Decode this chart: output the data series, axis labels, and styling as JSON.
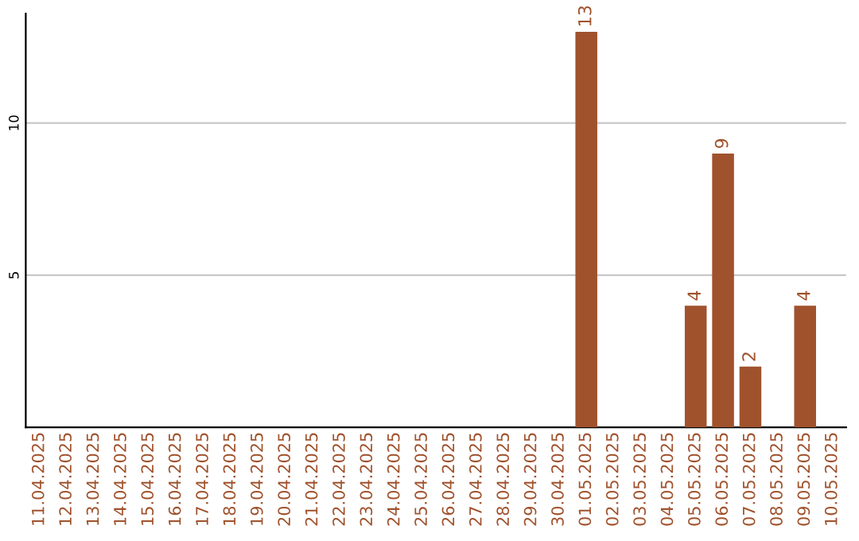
{
  "chart_data": {
    "type": "bar",
    "categories": [
      "11.04.2025",
      "12.04.2025",
      "13.04.2025",
      "14.04.2025",
      "15.04.2025",
      "16.04.2025",
      "17.04.2025",
      "18.04.2025",
      "19.04.2025",
      "20.04.2025",
      "21.04.2025",
      "22.04.2025",
      "23.04.2025",
      "24.04.2025",
      "25.04.2025",
      "26.04.2025",
      "27.04.2025",
      "28.04.2025",
      "29.04.2025",
      "30.04.2025",
      "01.05.2025",
      "02.05.2025",
      "03.05.2025",
      "04.05.2025",
      "05.05.2025",
      "06.05.2025",
      "07.05.2025",
      "08.05.2025",
      "09.05.2025",
      "10.05.2025"
    ],
    "values": [
      0,
      0,
      0,
      0,
      0,
      0,
      0,
      0,
      0,
      0,
      0,
      0,
      0,
      0,
      0,
      0,
      0,
      0,
      0,
      0,
      13,
      0,
      0,
      0,
      4,
      9,
      2,
      0,
      4,
      0
    ],
    "value_labels": [
      null,
      null,
      null,
      null,
      null,
      null,
      null,
      null,
      null,
      null,
      null,
      null,
      null,
      null,
      null,
      null,
      null,
      null,
      null,
      null,
      "13",
      null,
      null,
      null,
      "4",
      "9",
      "2",
      null,
      "4",
      null
    ],
    "color": "#a0522d",
    "ylim": [
      0,
      13.6
    ],
    "yticks": [
      5,
      10
    ],
    "grid": "y",
    "legend": false
  }
}
